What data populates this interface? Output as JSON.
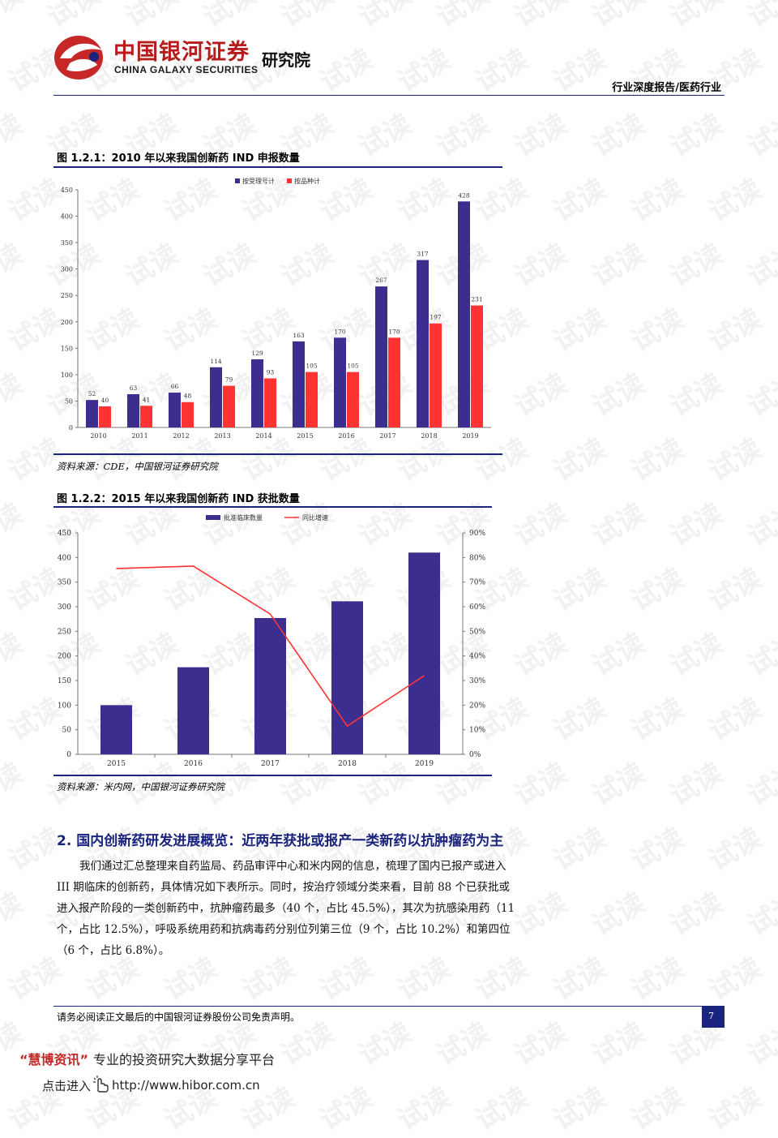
{
  "header": {
    "logo_cn": "中国银河证券",
    "logo_en": "CHINA GALAXY SECURITIES",
    "institute": "研究院",
    "report_tag": "行业深度报告/医药行业"
  },
  "figure1": {
    "title": "图 1.2.1：2010 年以来我国创新药 IND 申报数量",
    "source": "资料来源：CDE，中国银河证券研究院"
  },
  "figure2": {
    "title": "图 1.2.2：2015 年以来我国创新药 IND 获批数量",
    "source": "资料来源：米内网，中国银河证券研究院"
  },
  "section": {
    "title": "2. 国内创新药研发进展概览：近两年获批或报产一类新药以抗肿瘤药为主",
    "lines": [
      "我们通过汇总整理来自药监局、药品审评中心和米内网的信息，梳理了国内已报产或进入",
      "III 期临床的创新药，具体情况如下表所示。同时，按治疗领域分类来看，目前 88 个已获批或",
      "进入报产阶段的一类创新药中，抗肿瘤药最多（40 个，占比 45.5%），其次为抗感染用药（11",
      "个，占比 12.5%），呼吸系统用药和抗病毒药分别位列第三位（9 个，占比 10.2%）和第四位",
      "（6 个，占比 6.8%）。"
    ]
  },
  "footer": {
    "disclaimer": "请务必阅读正文最后的中国银河证券股份公司免责声明。",
    "page_number": "7"
  },
  "hibor": {
    "line1_quote_open": "“",
    "line1_brand": "慧博资讯",
    "line1_quote_close": "”",
    "line1_rest": "专业的投资研究大数据分享平台",
    "line2_prefix": "点击进入",
    "line2_url": "http://www.hibor.com.cn"
  },
  "watermark": "试读",
  "colors": {
    "bar_primary": "#3b2e8f",
    "bar_secondary": "#ff3333",
    "line": "#ff3333",
    "rule": "#1a237e",
    "logo_red": "#b71c1c"
  },
  "chart_data": [
    {
      "type": "bar",
      "categories": [
        "2010",
        "2011",
        "2012",
        "2013",
        "2014",
        "2015",
        "2016",
        "2017",
        "2018",
        "2019"
      ],
      "series": [
        {
          "name": "按受理号计",
          "values": [
            52,
            63,
            66,
            114,
            129,
            163,
            170,
            267,
            317,
            428
          ]
        },
        {
          "name": "按品种计",
          "values": [
            40,
            41,
            48,
            79,
            93,
            105,
            105,
            170,
            197,
            231
          ]
        }
      ],
      "yticks": [
        "0",
        "50",
        "100",
        "150",
        "200",
        "250",
        "300",
        "350",
        "400",
        "450"
      ],
      "ylim": [
        0,
        450
      ],
      "legend": "top",
      "grid": false
    },
    {
      "type": "bar",
      "categories": [
        "2015",
        "2016",
        "2017",
        "2018",
        "2019"
      ],
      "series": [
        {
          "name": "批准临床数量",
          "type": "bar",
          "axis": "left",
          "values": [
            100,
            177,
            277,
            311,
            410
          ]
        },
        {
          "name": "同比增速",
          "type": "line",
          "axis": "right",
          "values": [
            75.5,
            76.5,
            57,
            11.5,
            32
          ]
        }
      ],
      "yticks": [
        "0",
        "50",
        "100",
        "150",
        "200",
        "250",
        "300",
        "350",
        "400",
        "450"
      ],
      "y2ticks": [
        "0%",
        "10%",
        "20%",
        "30%",
        "40%",
        "50%",
        "60%",
        "70%",
        "80%",
        "90%"
      ],
      "ylim": [
        0,
        450
      ],
      "y2lim": [
        0,
        90
      ],
      "legend": "top",
      "grid": false
    }
  ]
}
